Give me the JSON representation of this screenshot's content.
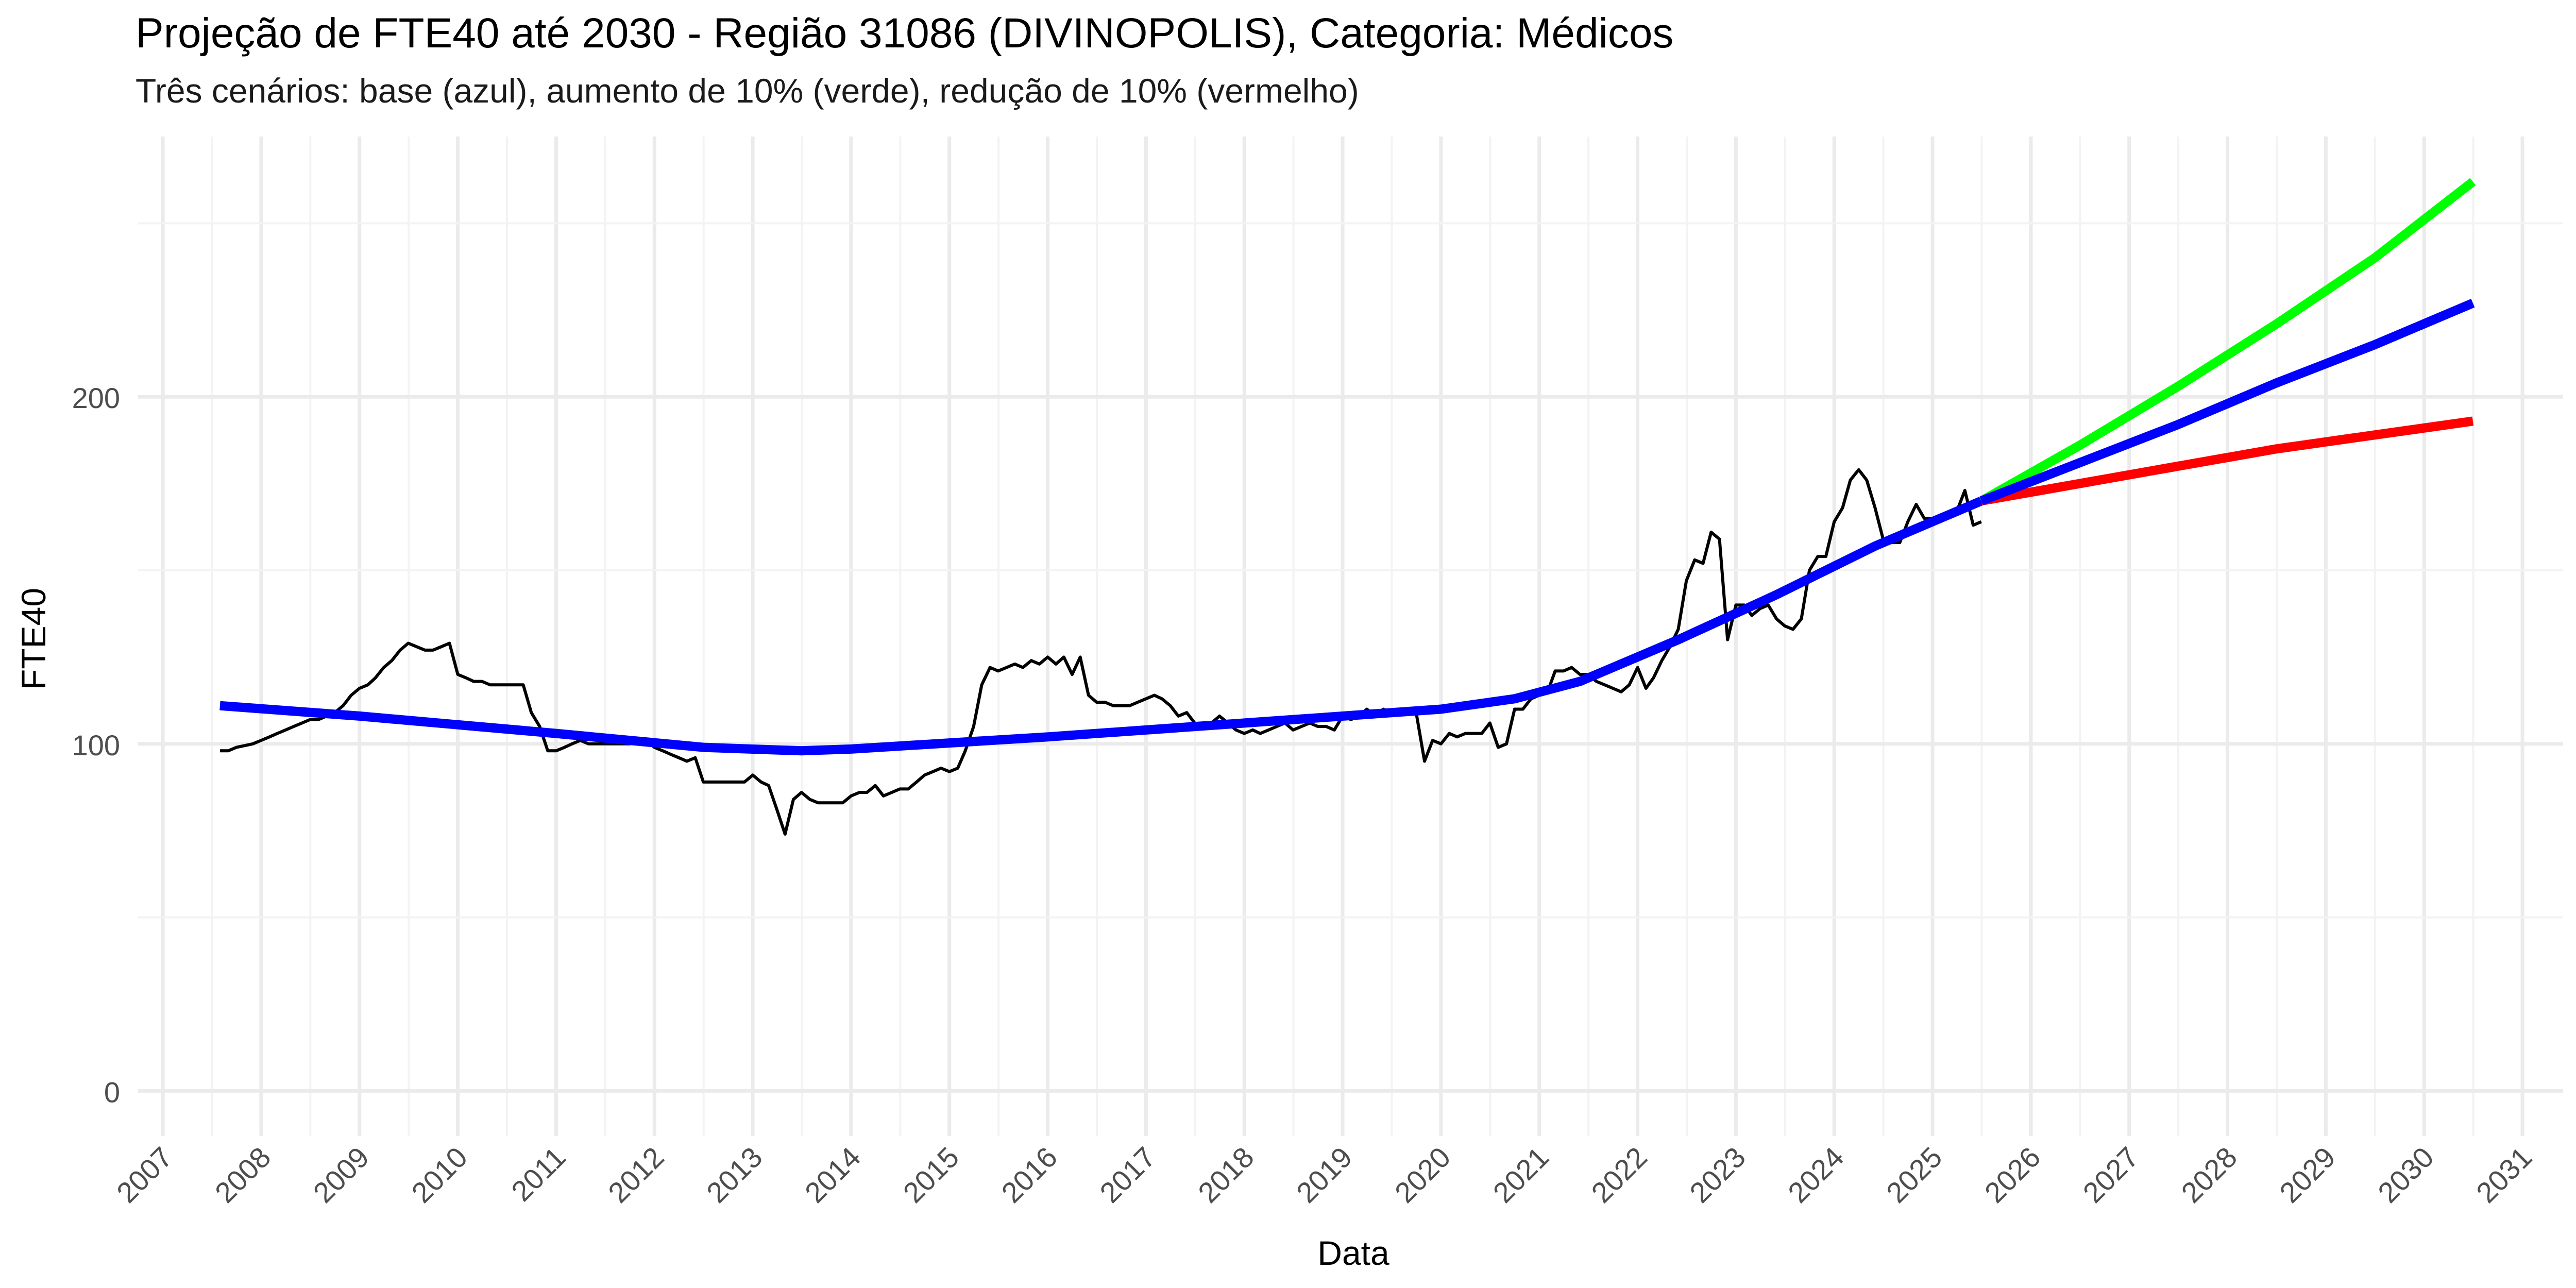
{
  "chart_data": {
    "type": "line",
    "title": "Projeção de FTE40 até 2030 - Região 31086 (DIVINOPOLIS), Categoria: Médicos",
    "subtitle": "Três cenários: base (azul), aumento de 10% (verde), redução de 10% (vermelho)",
    "xlabel": "Data",
    "ylabel": "FTE40",
    "x_tick_labels": [
      "2007",
      "2008",
      "2009",
      "2010",
      "2011",
      "2012",
      "2013",
      "2014",
      "2015",
      "2016",
      "2017",
      "2018",
      "2019",
      "2020",
      "2021",
      "2022",
      "2023",
      "2024",
      "2025",
      "2026",
      "2027",
      "2028",
      "2029",
      "2030",
      "2031"
    ],
    "y_ticks": [
      0,
      100,
      200
    ],
    "xlim": [
      "2006-10-01",
      "2031-06-01"
    ],
    "ylim": [
      -13,
      275
    ],
    "grid": true,
    "legend": "none",
    "series": [
      {
        "color": "#000000",
        "points": [
          [
            "2007-08-01",
            98
          ],
          [
            "2007-09-01",
            98
          ],
          [
            "2007-10-01",
            99
          ],
          [
            "2007-11-01",
            99.5
          ],
          [
            "2007-12-01",
            100
          ],
          [
            "2008-01-01",
            101
          ],
          [
            "2008-02-01",
            102
          ],
          [
            "2008-03-01",
            103
          ],
          [
            "2008-04-01",
            104
          ],
          [
            "2008-05-01",
            105
          ],
          [
            "2008-06-01",
            106
          ],
          [
            "2008-07-01",
            107
          ],
          [
            "2008-08-01",
            107
          ],
          [
            "2008-09-01",
            108
          ],
          [
            "2008-10-01",
            109
          ],
          [
            "2008-11-01",
            111
          ],
          [
            "2008-12-01",
            114
          ],
          [
            "2009-01-01",
            116
          ],
          [
            "2009-02-01",
            117
          ],
          [
            "2009-03-01",
            119
          ],
          [
            "2009-04-01",
            122
          ],
          [
            "2009-05-01",
            124
          ],
          [
            "2009-06-01",
            127
          ],
          [
            "2009-07-01",
            129
          ],
          [
            "2009-08-01",
            128
          ],
          [
            "2009-09-01",
            127
          ],
          [
            "2009-10-01",
            127
          ],
          [
            "2009-11-01",
            128
          ],
          [
            "2009-12-01",
            129
          ],
          [
            "2010-01-01",
            120
          ],
          [
            "2010-02-01",
            119
          ],
          [
            "2010-03-01",
            118
          ],
          [
            "2010-04-01",
            118
          ],
          [
            "2010-05-01",
            117
          ],
          [
            "2010-06-01",
            117
          ],
          [
            "2010-07-01",
            117
          ],
          [
            "2010-08-01",
            117
          ],
          [
            "2010-09-01",
            117
          ],
          [
            "2010-10-01",
            109
          ],
          [
            "2010-11-01",
            105
          ],
          [
            "2010-12-01",
            98
          ],
          [
            "2011-01-01",
            98
          ],
          [
            "2011-02-01",
            99
          ],
          [
            "2011-03-01",
            100
          ],
          [
            "2011-04-01",
            101
          ],
          [
            "2011-05-01",
            100
          ],
          [
            "2011-06-01",
            100
          ],
          [
            "2011-07-01",
            100
          ],
          [
            "2011-08-01",
            100
          ],
          [
            "2011-09-01",
            100
          ],
          [
            "2011-10-01",
            100
          ],
          [
            "2011-11-01",
            101
          ],
          [
            "2011-12-01",
            101
          ],
          [
            "2012-01-01",
            99
          ],
          [
            "2012-02-01",
            98
          ],
          [
            "2012-03-01",
            97
          ],
          [
            "2012-04-01",
            96
          ],
          [
            "2012-05-01",
            95
          ],
          [
            "2012-06-01",
            96
          ],
          [
            "2012-07-01",
            89
          ],
          [
            "2012-08-01",
            89
          ],
          [
            "2012-09-01",
            89
          ],
          [
            "2012-10-01",
            89
          ],
          [
            "2012-11-01",
            89
          ],
          [
            "2012-12-01",
            89
          ],
          [
            "2013-01-01",
            91
          ],
          [
            "2013-02-01",
            89
          ],
          [
            "2013-03-01",
            88
          ],
          [
            "2013-04-01",
            81
          ],
          [
            "2013-05-01",
            74
          ],
          [
            "2013-06-01",
            84
          ],
          [
            "2013-07-01",
            86
          ],
          [
            "2013-08-01",
            84
          ],
          [
            "2013-09-01",
            83
          ],
          [
            "2013-10-01",
            83
          ],
          [
            "2013-11-01",
            83
          ],
          [
            "2013-12-01",
            83
          ],
          [
            "2014-01-01",
            85
          ],
          [
            "2014-02-01",
            86
          ],
          [
            "2014-03-01",
            86
          ],
          [
            "2014-04-01",
            88
          ],
          [
            "2014-05-01",
            85
          ],
          [
            "2014-06-01",
            86
          ],
          [
            "2014-07-01",
            87
          ],
          [
            "2014-08-01",
            87
          ],
          [
            "2014-09-01",
            89
          ],
          [
            "2014-10-01",
            91
          ],
          [
            "2014-11-01",
            92
          ],
          [
            "2014-12-01",
            93
          ],
          [
            "2015-01-01",
            92
          ],
          [
            "2015-02-01",
            93
          ],
          [
            "2015-03-01",
            98
          ],
          [
            "2015-04-01",
            105
          ],
          [
            "2015-05-01",
            117
          ],
          [
            "2015-06-01",
            122
          ],
          [
            "2015-07-01",
            121
          ],
          [
            "2015-08-01",
            122
          ],
          [
            "2015-09-01",
            123
          ],
          [
            "2015-10-01",
            122
          ],
          [
            "2015-11-01",
            124
          ],
          [
            "2015-12-01",
            123
          ],
          [
            "2016-01-01",
            125
          ],
          [
            "2016-02-01",
            123
          ],
          [
            "2016-03-01",
            125
          ],
          [
            "2016-04-01",
            120
          ],
          [
            "2016-05-01",
            125
          ],
          [
            "2016-06-01",
            114
          ],
          [
            "2016-07-01",
            112
          ],
          [
            "2016-08-01",
            112
          ],
          [
            "2016-09-01",
            111
          ],
          [
            "2016-10-01",
            111
          ],
          [
            "2016-11-01",
            111
          ],
          [
            "2016-12-01",
            112
          ],
          [
            "2017-01-01",
            113
          ],
          [
            "2017-02-01",
            114
          ],
          [
            "2017-03-01",
            113
          ],
          [
            "2017-04-01",
            111
          ],
          [
            "2017-05-01",
            108
          ],
          [
            "2017-06-01",
            109
          ],
          [
            "2017-07-01",
            106
          ],
          [
            "2017-08-01",
            105
          ],
          [
            "2017-09-01",
            106
          ],
          [
            "2017-10-01",
            108
          ],
          [
            "2017-11-01",
            106
          ],
          [
            "2017-12-01",
            104
          ],
          [
            "2018-01-01",
            103
          ],
          [
            "2018-02-01",
            104
          ],
          [
            "2018-03-01",
            103
          ],
          [
            "2018-04-01",
            104
          ],
          [
            "2018-05-01",
            105
          ],
          [
            "2018-06-01",
            106
          ],
          [
            "2018-07-01",
            104
          ],
          [
            "2018-08-01",
            105
          ],
          [
            "2018-09-01",
            106
          ],
          [
            "2018-10-01",
            105
          ],
          [
            "2018-11-01",
            105
          ],
          [
            "2018-12-01",
            104
          ],
          [
            "2019-01-01",
            108
          ],
          [
            "2019-02-01",
            107
          ],
          [
            "2019-03-01",
            108
          ],
          [
            "2019-04-01",
            110
          ],
          [
            "2019-05-01",
            108
          ],
          [
            "2019-06-01",
            110
          ],
          [
            "2019-07-01",
            109
          ],
          [
            "2019-08-01",
            109
          ],
          [
            "2019-09-01",
            110
          ],
          [
            "2019-10-01",
            109
          ],
          [
            "2019-11-01",
            95
          ],
          [
            "2019-12-01",
            101
          ],
          [
            "2020-01-01",
            100
          ],
          [
            "2020-02-01",
            103
          ],
          [
            "2020-03-01",
            102
          ],
          [
            "2020-04-01",
            103
          ],
          [
            "2020-05-01",
            103
          ],
          [
            "2020-06-01",
            103
          ],
          [
            "2020-07-01",
            106
          ],
          [
            "2020-08-01",
            99
          ],
          [
            "2020-09-01",
            100
          ],
          [
            "2020-10-01",
            110
          ],
          [
            "2020-11-01",
            110
          ],
          [
            "2020-12-01",
            113
          ],
          [
            "2021-01-01",
            114
          ],
          [
            "2021-02-01",
            115
          ],
          [
            "2021-03-01",
            121
          ],
          [
            "2021-04-01",
            121
          ],
          [
            "2021-05-01",
            122
          ],
          [
            "2021-06-01",
            120
          ],
          [
            "2021-07-01",
            120
          ],
          [
            "2021-08-01",
            118
          ],
          [
            "2021-09-01",
            117
          ],
          [
            "2021-10-01",
            116
          ],
          [
            "2021-11-01",
            115
          ],
          [
            "2021-12-01",
            117
          ],
          [
            "2022-01-01",
            122
          ],
          [
            "2022-02-01",
            116
          ],
          [
            "2022-03-01",
            119
          ],
          [
            "2022-04-01",
            124
          ],
          [
            "2022-05-01",
            128
          ],
          [
            "2022-06-01",
            133
          ],
          [
            "2022-07-01",
            147
          ],
          [
            "2022-08-01",
            153
          ],
          [
            "2022-09-01",
            152
          ],
          [
            "2022-10-01",
            161
          ],
          [
            "2022-11-01",
            159
          ],
          [
            "2022-12-01",
            130
          ],
          [
            "2023-01-01",
            140
          ],
          [
            "2023-02-01",
            140
          ],
          [
            "2023-03-01",
            137
          ],
          [
            "2023-04-01",
            139
          ],
          [
            "2023-05-01",
            140
          ],
          [
            "2023-06-01",
            136
          ],
          [
            "2023-07-01",
            134
          ],
          [
            "2023-08-01",
            133
          ],
          [
            "2023-09-01",
            136
          ],
          [
            "2023-10-01",
            150
          ],
          [
            "2023-11-01",
            154
          ],
          [
            "2023-12-01",
            154
          ],
          [
            "2024-01-01",
            164
          ],
          [
            "2024-02-01",
            168
          ],
          [
            "2024-03-01",
            176
          ],
          [
            "2024-04-01",
            179
          ],
          [
            "2024-05-01",
            176
          ],
          [
            "2024-06-01",
            168
          ],
          [
            "2024-07-01",
            159
          ],
          [
            "2024-08-01",
            158
          ],
          [
            "2024-09-01",
            158
          ],
          [
            "2024-10-01",
            164
          ],
          [
            "2024-11-01",
            169
          ],
          [
            "2024-12-01",
            165
          ],
          [
            "2025-01-01",
            165
          ],
          [
            "2025-02-01",
            166
          ],
          [
            "2025-03-01",
            166
          ],
          [
            "2025-04-01",
            167
          ],
          [
            "2025-05-01",
            173
          ],
          [
            "2025-06-01",
            163
          ],
          [
            "2025-07-01",
            164
          ]
        ]
      },
      {
        "color": "#0000ff",
        "points": [
          [
            "2007-08-01",
            111
          ],
          [
            "2009-01-01",
            108
          ],
          [
            "2011-01-01",
            103
          ],
          [
            "2012-07-01",
            99
          ],
          [
            "2013-07-01",
            98
          ],
          [
            "2014-01-01",
            98.5
          ],
          [
            "2016-01-01",
            102
          ],
          [
            "2018-01-01",
            106
          ],
          [
            "2020-01-01",
            110
          ],
          [
            "2020-10-01",
            113
          ],
          [
            "2021-06-01",
            118
          ],
          [
            "2022-06-01",
            130
          ],
          [
            "2023-06-01",
            143
          ],
          [
            "2024-06-01",
            157
          ],
          [
            "2025-07-01",
            170
          ]
        ]
      },
      {
        "color": "#ff0000",
        "points": [
          [
            "2025-07-01",
            170
          ],
          [
            "2026-07-01",
            175
          ],
          [
            "2027-07-01",
            180
          ],
          [
            "2028-07-01",
            185
          ],
          [
            "2029-07-01",
            189
          ],
          [
            "2030-07-01",
            193
          ]
        ]
      },
      {
        "color": "#00ff00",
        "points": [
          [
            "2025-07-01",
            170
          ],
          [
            "2026-07-01",
            186
          ],
          [
            "2027-07-01",
            203
          ],
          [
            "2028-07-01",
            221
          ],
          [
            "2029-07-01",
            240
          ],
          [
            "2030-07-01",
            262
          ]
        ]
      },
      {
        "color": "#0000ff",
        "points": [
          [
            "2025-07-01",
            170
          ],
          [
            "2026-07-01",
            181
          ],
          [
            "2027-07-01",
            192
          ],
          [
            "2028-07-01",
            204
          ],
          [
            "2029-07-01",
            215
          ],
          [
            "2030-07-01",
            227
          ]
        ]
      }
    ]
  }
}
